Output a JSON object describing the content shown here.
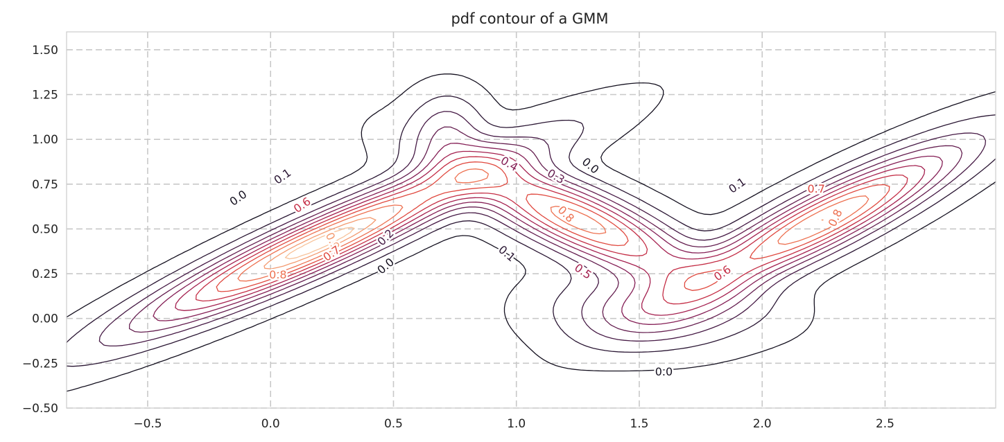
{
  "chart_data": {
    "type": "contour",
    "title": "pdf contour of a GMM",
    "xlabel": "",
    "ylabel": "",
    "xlim": [
      -0.83,
      2.95
    ],
    "ylim": [
      -0.5,
      1.6
    ],
    "xticks": [
      "−0.5",
      "0.0",
      "0.5",
      "1.0",
      "1.5",
      "2.0",
      "2.5"
    ],
    "xtick_values": [
      -0.5,
      0.0,
      0.5,
      1.0,
      1.5,
      2.0,
      2.5
    ],
    "yticks": [
      "−0.50",
      "−0.25",
      "0.00",
      "0.25",
      "0.50",
      "0.75",
      "1.00",
      "1.25",
      "1.50"
    ],
    "ytick_values": [
      -0.5,
      -0.25,
      0.0,
      0.25,
      0.5,
      0.75,
      1.0,
      1.25,
      1.5
    ],
    "grid": true,
    "grid_style": "dashed",
    "levels": [
      0.0,
      0.1,
      0.2,
      0.3,
      0.4,
      0.5,
      0.6,
      0.7,
      0.8,
      0.9
    ],
    "components": [
      {
        "mean": [
          0.2,
          0.42
        ],
        "sx": 0.5,
        "sy": 0.32,
        "rho": 0.94,
        "weight": 1.0
      },
      {
        "mean": [
          1.25,
          0.55
        ],
        "sx": 0.32,
        "sy": 0.22,
        "rho": -0.8,
        "weight": 0.85
      },
      {
        "mean": [
          2.25,
          0.55
        ],
        "sx": 0.38,
        "sy": 0.28,
        "rho": 0.9,
        "weight": 0.9
      },
      {
        "mean": [
          0.72,
          1.05
        ],
        "sx": 0.1,
        "sy": 0.14,
        "rho": 0.0,
        "weight": 0.25
      },
      {
        "mean": [
          1.55,
          0.05
        ],
        "sx": 0.25,
        "sy": 0.14,
        "rho": 0.0,
        "weight": 0.35
      }
    ],
    "contour_labels": [
      {
        "text": "0.0",
        "x": -0.13,
        "y": 0.67,
        "level": 0.0,
        "angle": -35
      },
      {
        "text": "0.1",
        "x": 0.05,
        "y": 0.79,
        "level": 0.1,
        "angle": -35
      },
      {
        "text": "0.6",
        "x": 0.13,
        "y": 0.63,
        "level": 0.6,
        "angle": -35
      },
      {
        "text": "0.9",
        "x": 0.25,
        "y": 0.43,
        "level": 0.9,
        "angle": 65
      },
      {
        "text": "0.7",
        "x": 0.25,
        "y": 0.36,
        "level": 0.7,
        "angle": -35
      },
      {
        "text": "0.8",
        "x": 0.03,
        "y": 0.24,
        "level": 0.8,
        "angle": 0
      },
      {
        "text": "0.2",
        "x": 0.47,
        "y": 0.45,
        "level": 0.2,
        "angle": -45
      },
      {
        "text": "0.0",
        "x": 0.47,
        "y": 0.29,
        "level": 0.0,
        "angle": -40
      },
      {
        "text": "0.4",
        "x": 0.97,
        "y": 0.86,
        "level": 0.4,
        "angle": 30
      },
      {
        "text": "0.3",
        "x": 1.16,
        "y": 0.79,
        "level": 0.3,
        "angle": 30
      },
      {
        "text": "0.0",
        "x": 1.3,
        "y": 0.85,
        "level": 0.0,
        "angle": 40
      },
      {
        "text": "0.8",
        "x": 1.2,
        "y": 0.58,
        "level": 0.8,
        "angle": 45
      },
      {
        "text": "0.1",
        "x": 0.96,
        "y": 0.36,
        "level": 0.1,
        "angle": 40
      },
      {
        "text": "0.5",
        "x": 1.27,
        "y": 0.26,
        "level": 0.5,
        "angle": 35
      },
      {
        "text": "0.1",
        "x": 1.9,
        "y": 0.74,
        "level": 0.1,
        "angle": -35
      },
      {
        "text": "0.7",
        "x": 2.22,
        "y": 0.72,
        "level": 0.7,
        "angle": 0
      },
      {
        "text": "0.8",
        "x": 2.3,
        "y": 0.56,
        "level": 0.8,
        "angle": -65
      },
      {
        "text": "0.6",
        "x": 1.84,
        "y": 0.25,
        "level": 0.6,
        "angle": -35
      },
      {
        "text": "0.0",
        "x": 1.6,
        "y": -0.3,
        "level": 0.0,
        "angle": 0
      }
    ]
  }
}
